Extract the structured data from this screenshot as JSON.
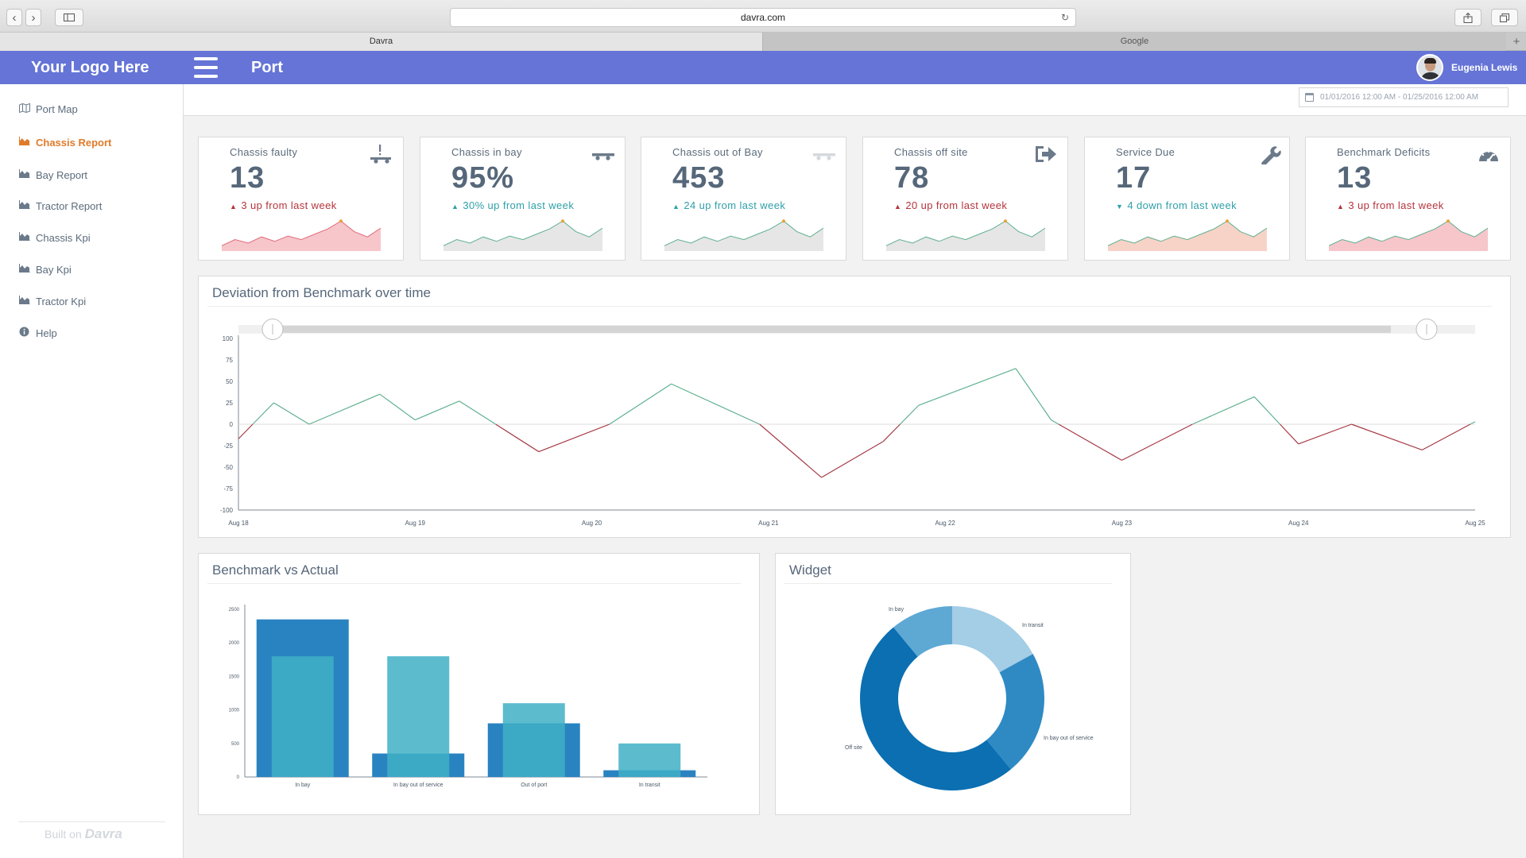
{
  "browser": {
    "url": "davra.com",
    "tabs": [
      {
        "label": "Davra",
        "active": true
      },
      {
        "label": "Google",
        "active": false
      }
    ],
    "new_tab": "+"
  },
  "header": {
    "logo": "Your Logo Here",
    "page_title": "Port",
    "user_name": "Eugenia Lewis",
    "color": "#6574d6"
  },
  "sidebar": {
    "items": [
      {
        "label": "Port Map",
        "icon": "map-icon",
        "active": false
      },
      {
        "label": "Chassis Report",
        "icon": "area-chart-icon",
        "active": true
      },
      {
        "label": "Bay Report",
        "icon": "area-chart-icon",
        "active": false
      },
      {
        "label": "Tractor Report",
        "icon": "area-chart-icon",
        "active": false
      },
      {
        "label": "Chassis Kpi",
        "icon": "area-chart-icon",
        "active": false
      },
      {
        "label": "Bay Kpi",
        "icon": "area-chart-icon",
        "active": false
      },
      {
        "label": "Tractor Kpi",
        "icon": "area-chart-icon",
        "active": false
      },
      {
        "label": "Help",
        "icon": "info-icon",
        "active": false
      }
    ],
    "built_on_prefix": "Built on",
    "built_on_brand": "Davra"
  },
  "date_range": "01/01/2016 12:00 AM - 01/25/2016 12:00 AM",
  "kpis": [
    {
      "label": "Chassis faulty",
      "value": "13",
      "trend": "3 up from last week",
      "direction": "up",
      "trend_color": "#b5343b",
      "icon": "chassis-alert-icon",
      "spark_fill": "#f6c6cb",
      "spark_line": "#e06b78"
    },
    {
      "label": "Chassis in bay",
      "value": "95%",
      "trend": "30% up from last week",
      "direction": "up",
      "trend_color": "#2fa0a8",
      "icon": "chassis-icon",
      "spark_fill": "#e6e6e6",
      "spark_line": "#5fb08f"
    },
    {
      "label": "Chassis out of Bay",
      "value": "453",
      "trend": "24 up from last week",
      "direction": "up",
      "trend_color": "#2fa0a8",
      "icon": "chassis-light-icon",
      "spark_fill": "#e6e6e6",
      "spark_line": "#5fb08f"
    },
    {
      "label": "Chassis off site",
      "value": "78",
      "trend": "20 up from last week",
      "direction": "up",
      "trend_color": "#b5343b",
      "icon": "sign-out-icon",
      "spark_fill": "#e6e6e6",
      "spark_line": "#5fb08f"
    },
    {
      "label": "Service Due",
      "value": "17",
      "trend": "4 down from last week",
      "direction": "down",
      "trend_color": "#2fa0a8",
      "icon": "wrench-icon",
      "spark_fill": "#f7d3c7",
      "spark_line": "#5fb08f"
    },
    {
      "label": "Benchmark Deficits",
      "value": "13",
      "trend": "3 up from last week",
      "direction": "up",
      "trend_color": "#b5343b",
      "icon": "dashboard-gauge-icon",
      "spark_fill": "#f6c6cb",
      "spark_line": "#5fb08f"
    }
  ],
  "deviation_card": {
    "title": "Deviation from Benchmark over time"
  },
  "benchmark_card": {
    "title": "Benchmark vs Actual"
  },
  "widget_card": {
    "title": "Widget"
  },
  "chart_data": [
    {
      "type": "line",
      "title": "Deviation from Benchmark over time",
      "ylim": [
        -100,
        100
      ],
      "yticks": [
        100,
        75,
        50,
        25,
        0,
        -25,
        -50,
        -75,
        -100
      ],
      "x_tick_labels": [
        "Aug 18",
        "Aug 19",
        "Aug 20",
        "Aug 21",
        "Aug 22",
        "Aug 23",
        "Aug 24",
        "Aug 25"
      ],
      "x": [
        0,
        0.2,
        0.4,
        0.8,
        1.0,
        1.25,
        1.7,
        2.1,
        2.45,
        2.95,
        3.3,
        3.65,
        3.85,
        4.4,
        4.6,
        5.0,
        5.4,
        5.75,
        6.0,
        6.3,
        6.7,
        7.0
      ],
      "values": [
        -17,
        25,
        0,
        35,
        5,
        27,
        -32,
        0,
        47,
        0,
        -62,
        -20,
        22,
        65,
        5,
        -42,
        0,
        32,
        -23,
        0,
        -30,
        3
      ],
      "positive_color": "#5fb08f",
      "negative_color": "#a63a45",
      "range_slider": true
    },
    {
      "type": "bar",
      "title": "Benchmark vs Actual",
      "categories": [
        "In bay",
        "In bay out of service",
        "Out of port",
        "In transit"
      ],
      "series": [
        {
          "values": [
            2350,
            350,
            800,
            100
          ],
          "color": "#2a83c1"
        },
        {
          "values": [
            1800,
            1800,
            1100,
            500
          ],
          "color": "#3fb0c6"
        }
      ],
      "ylim": [
        0,
        2500
      ],
      "yticks": [
        0,
        500,
        1000,
        1500,
        2000,
        2500
      ]
    },
    {
      "type": "pie",
      "title": "Widget",
      "donut": true,
      "labels": [
        "In bay",
        "In transit",
        "In bay out of service",
        "Off site"
      ],
      "values": [
        11,
        17,
        22,
        50
      ],
      "colors": [
        "#5ea8d4",
        "#a4cde6",
        "#2f8ac4",
        "#0b6fb1"
      ]
    }
  ]
}
